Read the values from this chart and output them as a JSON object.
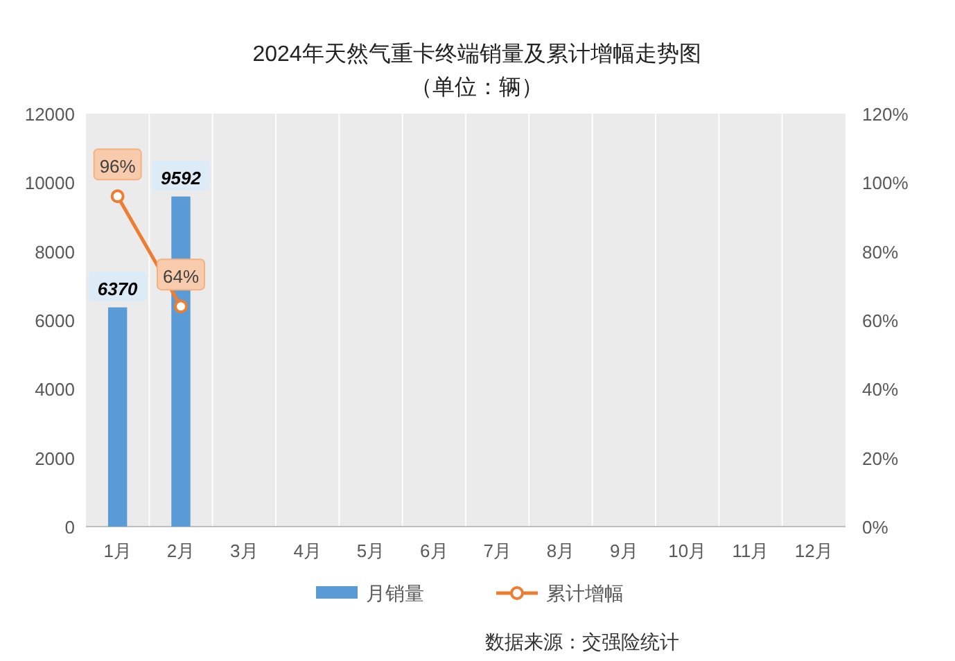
{
  "chart_data": {
    "type": "bar",
    "title": "2024年天然气重卡终端销量及累计增幅走势图",
    "subtitle": "（单位：辆）",
    "categories": [
      "1月",
      "2月",
      "3月",
      "4月",
      "5月",
      "6月",
      "7月",
      "8月",
      "9月",
      "10月",
      "11月",
      "12月"
    ],
    "series": [
      {
        "name": "月销量",
        "color": "#5b9bd5",
        "values": [
          6370,
          9592,
          null,
          null,
          null,
          null,
          null,
          null,
          null,
          null,
          null,
          null
        ]
      },
      {
        "name": "累计增幅",
        "type": "line",
        "axis": "y2",
        "color": "#ed7d31",
        "marker": "circle",
        "values": [
          96,
          64,
          null,
          null,
          null,
          null,
          null,
          null,
          null,
          null,
          null,
          null
        ]
      }
    ],
    "ylim": [
      0,
      12000
    ],
    "yticks": [
      0,
      2000,
      4000,
      6000,
      8000,
      10000,
      12000
    ],
    "y2lim": [
      0,
      120
    ],
    "y2ticks": [
      {
        "value": 0,
        "label": "0%"
      },
      {
        "value": 20,
        "label": "20%"
      },
      {
        "value": 40,
        "label": "40%"
      },
      {
        "value": 60,
        "label": "60%"
      },
      {
        "value": 80,
        "label": "80%"
      },
      {
        "value": 100,
        "label": "100%"
      },
      {
        "value": 120,
        "label": "120%"
      }
    ],
    "value_labels": [
      [
        "6370",
        "9592",
        null,
        null,
        null,
        null,
        null,
        null,
        null,
        null,
        null,
        null
      ],
      [
        "96%",
        "64%",
        null,
        null,
        null,
        null,
        null,
        null,
        null,
        null,
        null,
        null
      ]
    ],
    "grid": "x",
    "legend": "bottom",
    "annotations": [
      "数据来源：交强险统计"
    ]
  }
}
